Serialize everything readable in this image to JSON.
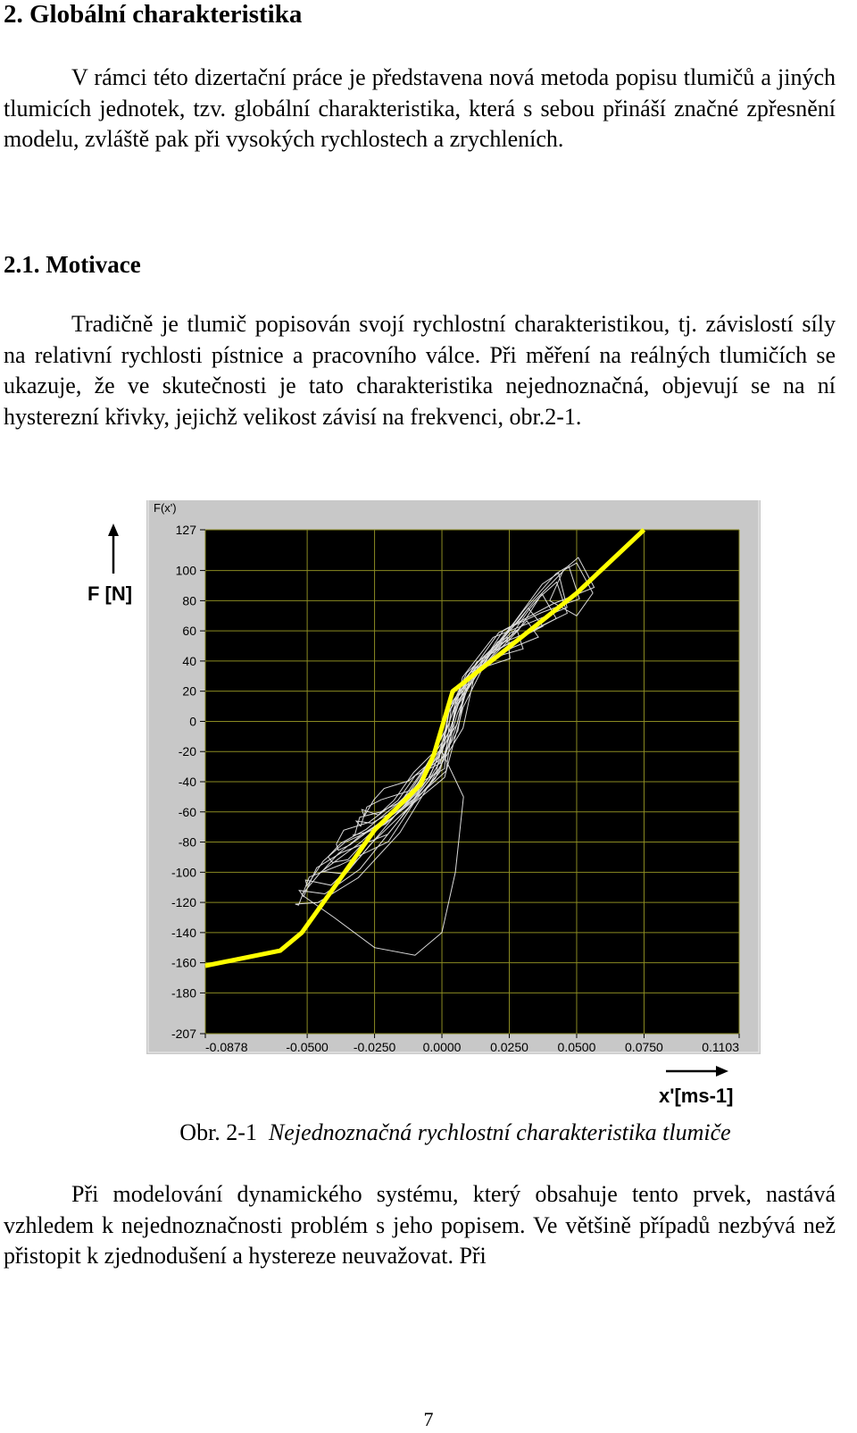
{
  "section": {
    "title": "2. Globální charakteristika"
  },
  "paragraph1": "V rámci této dizertační práce je představena nová metoda popisu tlumičů a jiných tlumicích jednotek, tzv. globální charakteristika, která s sebou přináší značné zpřesnění modelu, zvláště pak při vysokých rychlostech a zrychleních.",
  "subsection": {
    "title": "2.1. Motivace"
  },
  "paragraph2": "Tradičně je tlumič popisován svojí rychlostní charakteristikou, tj. závislostí síly na relativní rychlosti pístnice a pracovního válce. Při měření na reálných tlumičích se ukazuje, že ve skutečnosti je tato charakteristika nejednoznačná, objevují se na ní hysterezní křivky, jejichž velikost závisí na frekvenci, obr.2-1.",
  "figure": {
    "panel_label": "F(x')",
    "y_axis_label": "F [N]",
    "x_axis_label": "x'[ms-1]",
    "caption_number": "Obr. 2-1",
    "caption_text": "Nejednoznačná rychlostní charakteristika tlumiče",
    "colors": {
      "plot_bg": "#000000",
      "grid": "#8a8a22",
      "frame": "#c8c8c8",
      "measured": "#ffffff",
      "model": "#ffff00"
    }
  },
  "chart_data": {
    "type": "line",
    "title": "",
    "xlabel": "x'[ms-1]",
    "ylabel": "F [N]",
    "xlim": [
      -0.0878,
      0.1103
    ],
    "ylim": [
      -207,
      127
    ],
    "x_tick_labels": [
      "-0.0878",
      "-0.0500",
      "-0.0250",
      "0.0000",
      "0.0250",
      "0.0500",
      "0.0750",
      "0.1103"
    ],
    "x_tick_values": [
      -0.0878,
      -0.05,
      -0.025,
      0.0,
      0.025,
      0.05,
      0.075,
      0.1103
    ],
    "y_tick_labels": [
      "127",
      "100",
      "80",
      "60",
      "40",
      "20",
      "0",
      "-20",
      "-40",
      "-60",
      "-80",
      "-100",
      "-120",
      "-140",
      "-160",
      "-180",
      "-207"
    ],
    "y_tick_values": [
      127,
      100,
      80,
      60,
      40,
      20,
      0,
      -20,
      -40,
      -60,
      -80,
      -100,
      -120,
      -140,
      -160,
      -180,
      -207
    ],
    "grid": true,
    "series": [
      {
        "name": "",
        "role": "model characteristic",
        "x": [
          -0.0878,
          -0.06,
          -0.052,
          -0.04,
          -0.025,
          -0.008,
          -0.003,
          0.004,
          0.024,
          0.05,
          0.075
        ],
        "y": [
          -162,
          -152,
          -140,
          -110,
          -72,
          -42,
          -22,
          20,
          48,
          85,
          127
        ]
      },
      {
        "name": "",
        "role": "measured hysteresis loops (representative)",
        "x": [
          -0.05,
          -0.045,
          -0.035,
          -0.02,
          -0.01,
          0.0,
          0.005,
          0.015,
          0.03,
          0.04,
          0.045,
          0.05,
          0.035,
          0.02,
          0.01,
          0.005,
          -0.005,
          -0.015,
          -0.03,
          -0.042,
          -0.05
        ],
        "y": [
          -110,
          -95,
          -85,
          -70,
          -50,
          -35,
          10,
          40,
          70,
          92,
          100,
          80,
          68,
          55,
          30,
          -5,
          -40,
          -65,
          -92,
          -110,
          -110
        ]
      }
    ]
  },
  "paragraph3": "Při modelování dynamického systému, který obsahuje tento prvek, nastává vzhledem k nejednoznačnosti problém s jeho popisem. Ve většině případů nezbývá než přistopit k zjednodušení a hystereze neuvažovat. Při",
  "page_number": "7"
}
